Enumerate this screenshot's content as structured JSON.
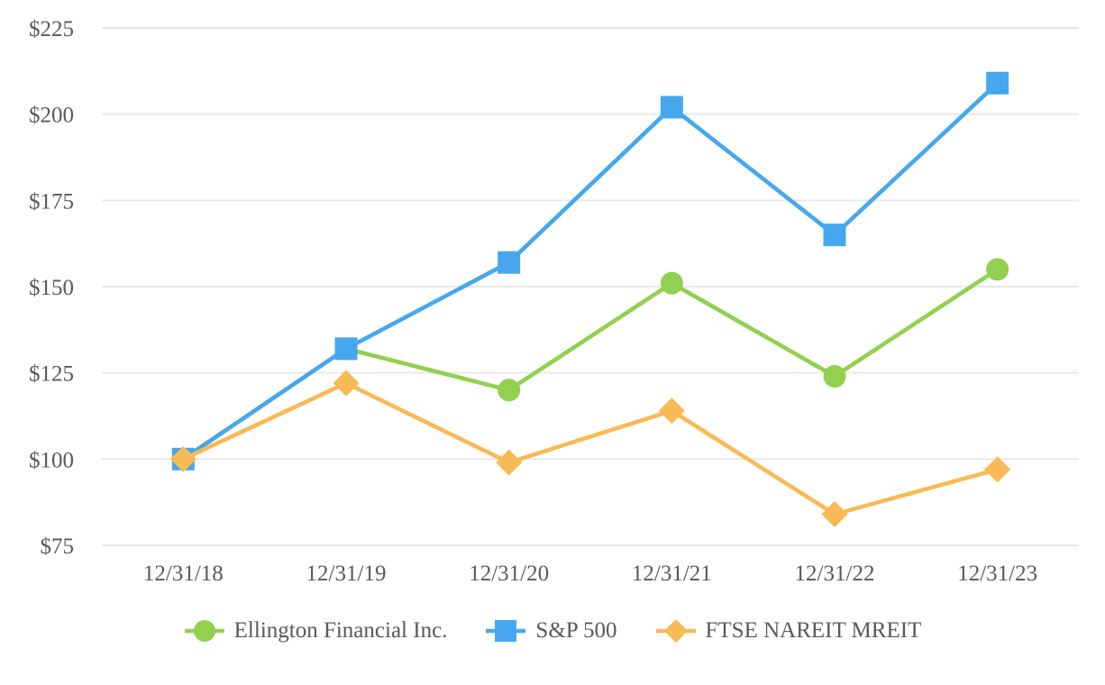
{
  "chart_data": {
    "type": "line",
    "title": "",
    "x_categories": [
      "12/31/18",
      "12/31/19",
      "12/31/20",
      "12/31/21",
      "12/31/22",
      "12/31/23"
    ],
    "y_tick_labels": [
      "$225",
      "$200",
      "$175",
      "$150",
      "$125",
      "$100",
      "$75"
    ],
    "y_tick_values": [
      225,
      200,
      175,
      150,
      125,
      100,
      75
    ],
    "ylim": [
      75,
      225
    ],
    "grid": "horizontal",
    "legend_position": "bottom",
    "series": [
      {
        "name": "Ellington Financial Inc.",
        "marker": "circle",
        "color": "#92D050",
        "values": [
          100,
          132,
          120,
          151,
          124,
          155
        ]
      },
      {
        "name": "S&P 500",
        "marker": "square",
        "color": "#46A7EE",
        "values": [
          100,
          132,
          157,
          202,
          165,
          209
        ]
      },
      {
        "name": "FTSE NAREIT MREIT",
        "marker": "diamond",
        "color": "#F8BA54",
        "values": [
          100,
          122,
          99,
          114,
          84,
          97
        ]
      }
    ]
  },
  "styles": {
    "text_color": "#595959",
    "gridline_color": "#E9E9E9",
    "background": "#FFFFFF",
    "line_width": 4.6
  }
}
